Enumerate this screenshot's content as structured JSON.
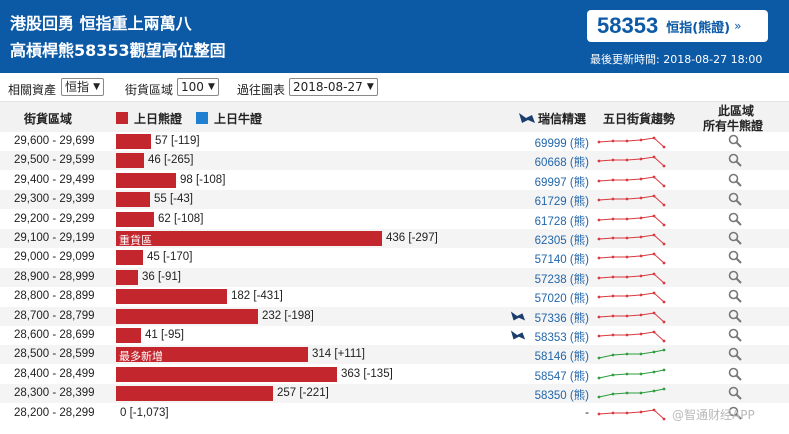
{
  "header": {
    "headline_1": "港股回勇 恒指重上兩萬八",
    "headline_2": "高槓桿熊58353觀望高位整固",
    "code": "58353",
    "code_label": "恒指",
    "code_label_type": "(熊證)",
    "updated": "最後更新時間: 2018-08-27 18:00"
  },
  "filters": {
    "asset_label": "相關資產",
    "asset_value": "恒指",
    "range_label": "街貨區域",
    "range_value": "100",
    "chart_label": "過往圖表",
    "chart_value": "2018-08-27"
  },
  "columns": {
    "range": "街貨區域",
    "bear_legend": "上日熊證",
    "bull_legend": "上日牛證",
    "ubs": "瑞信精選",
    "trend": "五日街貨趨勢",
    "all_line1": "此區域",
    "all_line2": "所有牛熊證"
  },
  "colors": {
    "header": "#0c5aa6",
    "bear": "#c4262e",
    "bull": "#1f7fd0",
    "link": "#2266aa"
  },
  "rows": [
    {
      "range": "29,600 - 29,699",
      "value": 57,
      "value_text": "57 [-119]",
      "bar_label": "",
      "warrant": "69999 (熊)",
      "ubs": false,
      "trend": "red",
      "mag": true
    },
    {
      "range": "29,500 - 29,599",
      "value": 46,
      "value_text": "46 [-265]",
      "bar_label": "",
      "warrant": "60668 (熊)",
      "ubs": false,
      "trend": "red",
      "mag": true
    },
    {
      "range": "29,400 - 29,499",
      "value": 98,
      "value_text": "98 [-108]",
      "bar_label": "",
      "warrant": "69997 (熊)",
      "ubs": false,
      "trend": "red",
      "mag": true
    },
    {
      "range": "29,300 - 29,399",
      "value": 55,
      "value_text": "55 [-43]",
      "bar_label": "",
      "warrant": "61729 (熊)",
      "ubs": false,
      "trend": "red",
      "mag": true
    },
    {
      "range": "29,200 - 29,299",
      "value": 62,
      "value_text": "62 [-108]",
      "bar_label": "",
      "warrant": "61728 (熊)",
      "ubs": false,
      "trend": "red",
      "mag": true
    },
    {
      "range": "29,100 - 29,199",
      "value": 436,
      "value_text": "436 [-297]",
      "bar_label": "重貨區",
      "warrant": "62305 (熊)",
      "ubs": false,
      "trend": "red",
      "mag": true
    },
    {
      "range": "29,000 - 29,099",
      "value": 45,
      "value_text": "45 [-170]",
      "bar_label": "",
      "warrant": "57140 (熊)",
      "ubs": false,
      "trend": "red",
      "mag": true
    },
    {
      "range": "28,900 - 28,999",
      "value": 36,
      "value_text": "36 [-91]",
      "bar_label": "",
      "warrant": "57238 (熊)",
      "ubs": false,
      "trend": "red",
      "mag": true
    },
    {
      "range": "28,800 - 28,899",
      "value": 182,
      "value_text": "182 [-431]",
      "bar_label": "",
      "warrant": "57020 (熊)",
      "ubs": false,
      "trend": "red",
      "mag": true
    },
    {
      "range": "28,700 - 28,799",
      "value": 232,
      "value_text": "232 [-198]",
      "bar_label": "",
      "warrant": "57336 (熊)",
      "ubs": true,
      "trend": "red",
      "mag": true
    },
    {
      "range": "28,600 - 28,699",
      "value": 41,
      "value_text": "41 [-95]",
      "bar_label": "",
      "warrant": "58353 (熊)",
      "ubs": true,
      "trend": "red",
      "mag": true
    },
    {
      "range": "28,500 - 28,599",
      "value": 314,
      "value_text": "314 [+111]",
      "bar_label": "最多新增",
      "warrant": "58146 (熊)",
      "ubs": false,
      "trend": "green",
      "mag": true
    },
    {
      "range": "28,400 - 28,499",
      "value": 363,
      "value_text": "363 [-135]",
      "bar_label": "",
      "warrant": "58547 (熊)",
      "ubs": false,
      "trend": "green",
      "mag": true
    },
    {
      "range": "28,300 - 28,399",
      "value": 257,
      "value_text": "257 [-221]",
      "bar_label": "",
      "warrant": "58350 (熊)",
      "ubs": false,
      "trend": "green",
      "mag": true
    },
    {
      "range": "28,200 - 28,299",
      "value": 0,
      "value_text": "0 [-1,073]",
      "bar_label": "",
      "warrant": "-",
      "ubs": false,
      "trend": "red",
      "mag": true
    }
  ],
  "watermark": "@智通财经APP"
}
